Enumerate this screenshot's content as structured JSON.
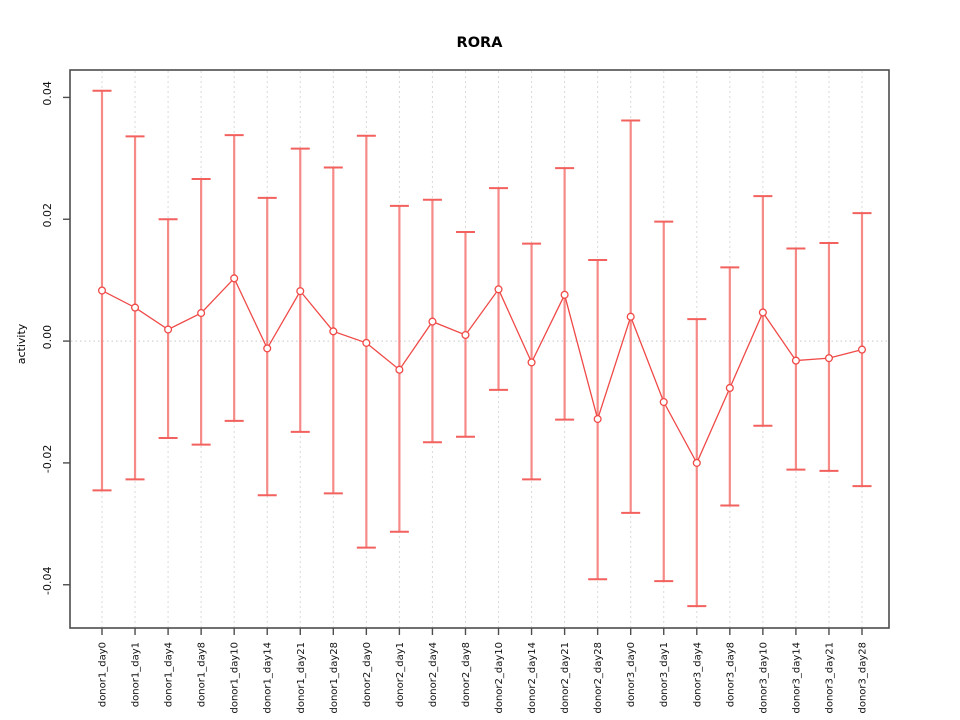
{
  "figure": {
    "background": "#ffffff"
  },
  "chart_data": {
    "type": "line",
    "subtype": "points-with-error-bars",
    "title": "RORA",
    "xlabel": "",
    "ylabel": "activity",
    "legend": "none",
    "grid": {
      "vertical_dashed_per_category": true,
      "horizontal_zero_dotted": true
    },
    "categories": [
      "donor1_day0",
      "donor1_day1",
      "donor1_day4",
      "donor1_day8",
      "donor1_day10",
      "donor1_day14",
      "donor1_day21",
      "donor1_day28",
      "donor2_day0",
      "donor2_day1",
      "donor2_day4",
      "donor2_day8",
      "donor2_day10",
      "donor2_day14",
      "donor2_day21",
      "donor2_day28",
      "donor3_day0",
      "donor3_day1",
      "donor3_day4",
      "donor3_day8",
      "donor3_day10",
      "donor3_day14",
      "donor3_day21",
      "donor3_day28"
    ],
    "series": [
      {
        "name": "activity",
        "values": [
          0.0083,
          0.0055,
          0.0019,
          0.0046,
          0.0103,
          -0.0012,
          0.0082,
          0.0016,
          -0.0003,
          -0.0047,
          0.0032,
          0.001,
          0.0085,
          -0.0035,
          0.0076,
          -0.0128,
          0.004,
          -0.01,
          -0.02,
          -0.0077,
          0.0047,
          -0.0032,
          -0.0028,
          -0.0014
        ],
        "error_upper": [
          0.0411,
          0.0336,
          0.02,
          0.0266,
          0.0338,
          0.0235,
          0.0316,
          0.0285,
          0.0337,
          0.0222,
          0.0232,
          0.0179,
          0.0251,
          0.016,
          0.0284,
          0.0133,
          0.0362,
          0.0196,
          0.0036,
          0.0121,
          0.0238,
          0.0152,
          0.0161,
          0.021
        ],
        "error_lower": [
          -0.0245,
          -0.0227,
          -0.0159,
          -0.017,
          -0.0131,
          -0.0253,
          -0.0149,
          -0.025,
          -0.0339,
          -0.0313,
          -0.0166,
          -0.0157,
          -0.008,
          -0.0227,
          -0.0129,
          -0.0391,
          -0.0282,
          -0.0394,
          -0.0435,
          -0.027,
          -0.0139,
          -0.0211,
          -0.0213,
          -0.0238
        ]
      }
    ],
    "ylim": [
      -0.0471,
      0.0445
    ],
    "yticks": [
      -0.04,
      -0.02,
      0.0,
      0.02,
      0.04
    ],
    "ytick_labels": [
      "-0.04",
      "-0.02",
      "0.00",
      "0.02",
      "0.04"
    ],
    "colors": {
      "point_and_line": "#ef4a47",
      "error_bar": "#f58a87",
      "error_cap": "#f2615e",
      "grid": "#d9d9d9",
      "zero_line": "#c8c8c8",
      "axis_frame": "#4d4d4d",
      "title": "#000000"
    }
  }
}
